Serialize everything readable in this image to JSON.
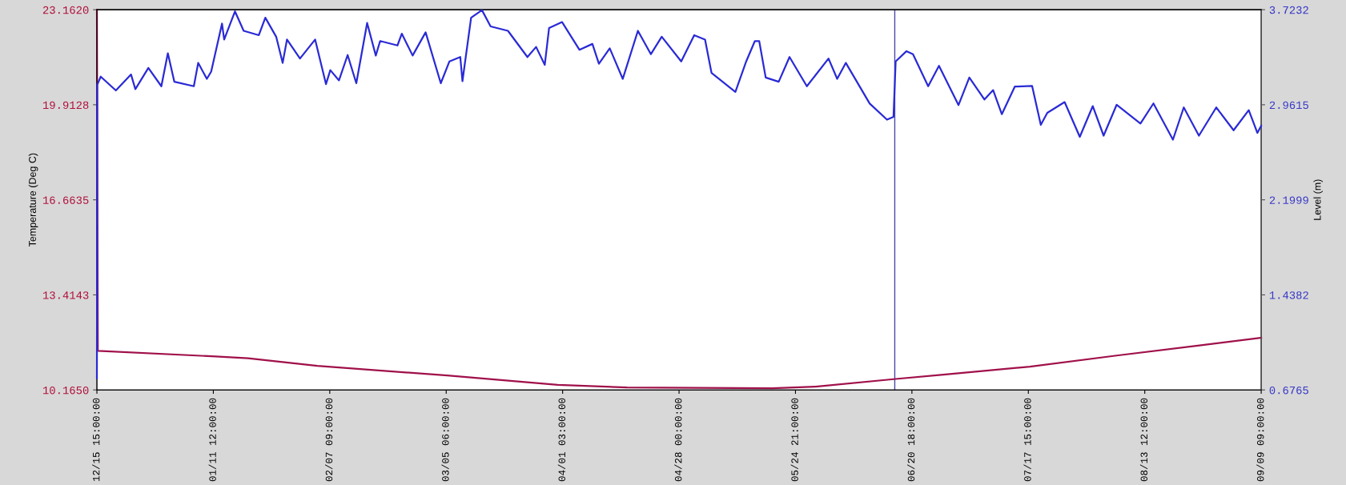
{
  "chart_data": {
    "type": "line",
    "ylabel": "Temperature (Deg C)",
    "y2label": "Level (m)",
    "xlim": [
      "2003-12-15T15:00",
      "2004-09-09T09:00"
    ],
    "xticks": [
      {
        "value": "2003-12-15T15:00",
        "label": "12/15 15:00:00"
      },
      {
        "value": "2004-01-11T12:00",
        "label": "01/11 12:00:00"
      },
      {
        "value": "2004-02-07T09:00",
        "label": "02/07 09:00:00"
      },
      {
        "value": "2004-03-05T06:00",
        "label": "03/05 06:00:00"
      },
      {
        "value": "2004-04-01T03:00",
        "label": "04/01 03:00:00"
      },
      {
        "value": "2004-04-28T00:00",
        "label": "04/28 00:00:00"
      },
      {
        "value": "2004-05-24T21:00",
        "label": "05/24 21:00:00"
      },
      {
        "value": "2004-06-20T18:00",
        "label": "06/20 18:00:00"
      },
      {
        "value": "2004-07-17T15:00",
        "label": "07/17 15:00:00"
      },
      {
        "value": "2004-08-13T12:00",
        "label": "08/13 12:00:00"
      },
      {
        "value": "2004-09-09T09:00",
        "label": "09/09 09:00:00"
      }
    ],
    "ylim": [
      10.165,
      23.162
    ],
    "yticks": [
      {
        "value": 10.165,
        "label": "10.1650"
      },
      {
        "value": 13.4143,
        "label": "13.4143"
      },
      {
        "value": 16.6635,
        "label": "16.6635"
      },
      {
        "value": 19.9128,
        "label": "19.9128"
      },
      {
        "value": 23.162,
        "label": "23.1620"
      }
    ],
    "y2lim": [
      0.6765,
      3.7232
    ],
    "y2ticks": [
      {
        "value": 0.6765,
        "label": "0.6765"
      },
      {
        "value": 1.4382,
        "label": "1.4382"
      },
      {
        "value": 2.1999,
        "label": "2.1999"
      },
      {
        "value": 2.9615,
        "label": "2.9615"
      },
      {
        "value": 3.7232,
        "label": "3.7232"
      }
    ],
    "grid": false,
    "legend": false,
    "ref_lines": [
      {
        "axis": "x",
        "value": "2004-06-16T19:00",
        "color": "#4848a8"
      }
    ],
    "series": [
      {
        "color": "#a0104a",
        "x": [
          "2003-12-15T15:00",
          "2003-12-15T20:00",
          "2004-01-12T00:00",
          "2004-01-19T12:00",
          "2004-02-04T12:00",
          "2004-03-05T12:00",
          "2004-03-31T00:00",
          "2004-04-16T00:00",
          "2004-05-19T12:00",
          "2004-05-29T12:00",
          "2004-06-17T00:00",
          "2004-06-28T00:00",
          "2004-07-18T00:00",
          "2004-08-07T00:00",
          "2004-08-26T12:00",
          "2004-09-09T09:00"
        ],
        "values": [
          23.16,
          11.5,
          11.31,
          11.25,
          10.99,
          10.66,
          10.34,
          10.25,
          10.22,
          10.28,
          10.54,
          10.69,
          10.96,
          11.34,
          11.69,
          11.95
        ]
      },
      {
        "color": "#2a2ad6",
        "axis": "y2",
        "x": [
          "2003-12-15T15:00",
          "2003-12-15T17:00",
          "2003-12-16T12:00",
          "2003-12-20T00:00",
          "2003-12-23T12:00",
          "2003-12-24T12:00",
          "2003-12-27T12:00",
          "2003-12-30T12:00",
          "2004-01-01T00:00",
          "2004-01-02T12:00",
          "2004-01-07T00:00",
          "2004-01-08T00:00",
          "2004-01-10T00:00",
          "2004-01-11T00:00",
          "2004-01-13T12:00",
          "2004-01-14T00:00",
          "2004-01-16T12:00",
          "2004-01-18T12:00",
          "2004-01-22T00:00",
          "2004-01-23T12:00",
          "2004-01-26T00:00",
          "2004-01-27T12:00",
          "2004-01-28T12:00",
          "2004-01-31T12:00",
          "2004-02-04T00:00",
          "2004-02-06T12:00",
          "2004-02-07T12:00",
          "2004-02-09T12:00",
          "2004-02-11T12:00",
          "2004-02-13T12:00",
          "2004-02-16T00:00",
          "2004-02-18T00:00",
          "2004-02-19T00:00",
          "2004-02-23T00:00",
          "2004-02-24T00:00",
          "2004-02-26T12:00",
          "2004-02-29T12:00",
          "2004-03-04T00:00",
          "2004-03-06T00:00",
          "2004-03-08T12:00",
          "2004-03-09T00:00",
          "2004-03-11T00:00",
          "2004-03-13T12:00",
          "2004-03-15T12:00",
          "2004-03-19T12:00",
          "2004-03-24T00:00",
          "2004-03-26T00:00",
          "2004-03-28T00:00",
          "2004-03-29T00:00",
          "2004-04-01T00:00",
          "2004-04-05T00:00",
          "2004-04-08T00:00",
          "2004-04-09T12:00",
          "2004-04-12T00:00",
          "2004-04-15T00:00",
          "2004-04-18T12:00",
          "2004-04-21T12:00",
          "2004-04-24T00:00",
          "2004-04-28T12:00",
          "2004-05-01T12:00",
          "2004-05-04T00:00",
          "2004-05-05T12:00",
          "2004-05-11T00:00",
          "2004-05-13T12:00",
          "2004-05-15T12:00",
          "2004-05-16T12:00",
          "2004-05-18T00:00",
          "2004-05-21T00:00",
          "2004-05-23T12:00",
          "2004-05-27T12:00",
          "2004-06-01T12:00",
          "2004-06-03T12:00",
          "2004-06-05T12:00",
          "2004-06-11T00:00",
          "2004-06-15T00:00",
          "2004-06-16T12:00",
          "2004-06-17T00:00",
          "2004-06-19T12:00",
          "2004-06-21T00:00",
          "2004-06-24T12:00",
          "2004-06-27T00:00",
          "2004-07-01T12:00",
          "2004-07-04T00:00",
          "2004-07-07T12:00",
          "2004-07-09T12:00",
          "2004-07-11T12:00",
          "2004-07-14T12:00",
          "2004-07-18T12:00",
          "2004-07-20T12:00",
          "2004-07-22T00:00",
          "2004-07-26T00:00",
          "2004-07-29T12:00",
          "2004-08-01T12:00",
          "2004-08-04T00:00",
          "2004-08-07T00:00",
          "2004-08-12T12:00",
          "2004-08-15T12:00",
          "2004-08-20T00:00",
          "2004-08-22T12:00",
          "2004-08-26T00:00",
          "2004-08-30T00:00",
          "2004-09-03T00:00",
          "2004-09-06T12:00",
          "2004-09-08T12:00",
          "2004-09-09T09:00"
        ],
        "values": [
          0.77,
          3.122,
          3.187,
          3.076,
          3.204,
          3.087,
          3.257,
          3.11,
          3.374,
          3.146,
          3.11,
          3.297,
          3.169,
          3.227,
          3.612,
          3.484,
          3.71,
          3.554,
          3.519,
          3.659,
          3.507,
          3.297,
          3.484,
          3.332,
          3.484,
          3.127,
          3.239,
          3.157,
          3.36,
          3.134,
          3.617,
          3.356,
          3.472,
          3.437,
          3.531,
          3.356,
          3.542,
          3.134,
          3.309,
          3.344,
          3.15,
          3.659,
          3.72,
          3.589,
          3.554,
          3.344,
          3.425,
          3.281,
          3.577,
          3.624,
          3.402,
          3.449,
          3.29,
          3.414,
          3.169,
          3.554,
          3.367,
          3.507,
          3.309,
          3.519,
          3.484,
          3.216,
          3.064,
          3.309,
          3.472,
          3.472,
          3.18,
          3.146,
          3.344,
          3.11,
          3.332,
          3.169,
          3.297,
          2.971,
          2.842,
          2.865,
          3.309,
          3.391,
          3.367,
          3.11,
          3.274,
          2.959,
          3.18,
          3.004,
          3.079,
          2.886,
          3.107,
          3.112,
          2.8,
          2.897,
          2.983,
          2.704,
          2.951,
          2.714,
          2.961,
          2.811,
          2.972,
          2.682,
          2.94,
          2.714,
          2.94,
          2.757,
          2.918,
          2.736,
          2.793
        ]
      }
    ]
  }
}
